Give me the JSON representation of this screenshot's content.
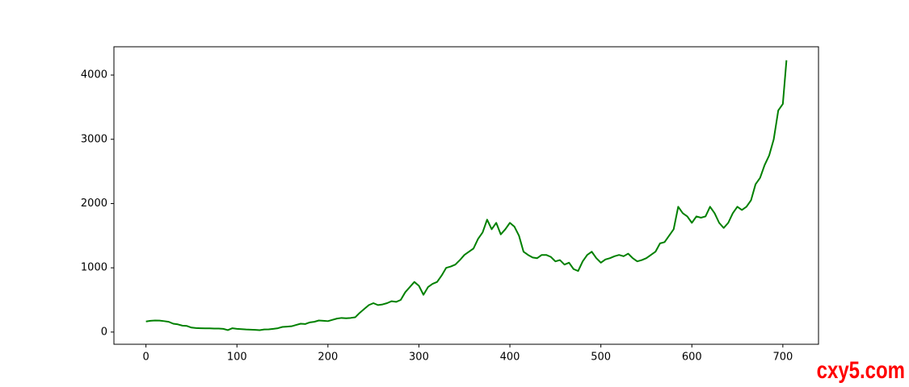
{
  "chart_data": {
    "type": "line",
    "color": "#008000",
    "grid": false,
    "x": [
      0,
      5,
      10,
      15,
      20,
      25,
      30,
      35,
      40,
      45,
      50,
      55,
      60,
      65,
      70,
      75,
      80,
      85,
      90,
      95,
      100,
      105,
      110,
      115,
      120,
      125,
      130,
      135,
      140,
      145,
      150,
      155,
      160,
      165,
      170,
      175,
      180,
      185,
      190,
      195,
      200,
      205,
      210,
      215,
      220,
      225,
      230,
      235,
      240,
      245,
      250,
      255,
      260,
      265,
      270,
      275,
      280,
      285,
      290,
      295,
      300,
      305,
      310,
      315,
      320,
      325,
      330,
      335,
      340,
      345,
      350,
      355,
      360,
      365,
      370,
      375,
      380,
      385,
      390,
      395,
      400,
      405,
      410,
      415,
      420,
      425,
      430,
      435,
      440,
      445,
      450,
      455,
      460,
      465,
      470,
      475,
      480,
      485,
      490,
      495,
      500,
      505,
      510,
      515,
      520,
      525,
      530,
      535,
      540,
      545,
      550,
      555,
      560,
      565,
      570,
      575,
      580,
      585,
      590,
      595,
      600,
      605,
      610,
      615,
      620,
      625,
      630,
      635,
      640,
      645,
      650,
      655,
      660,
      665,
      670,
      675,
      680,
      685,
      690,
      695,
      700,
      704
    ],
    "values": [
      165,
      175,
      180,
      178,
      170,
      160,
      130,
      120,
      100,
      95,
      70,
      62,
      60,
      58,
      57,
      55,
      55,
      50,
      30,
      60,
      50,
      45,
      40,
      38,
      35,
      30,
      40,
      42,
      50,
      60,
      80,
      85,
      90,
      110,
      130,
      125,
      150,
      160,
      180,
      175,
      170,
      190,
      210,
      220,
      215,
      220,
      230,
      300,
      360,
      420,
      450,
      420,
      430,
      450,
      480,
      470,
      500,
      620,
      700,
      780,
      720,
      580,
      700,
      750,
      780,
      880,
      1000,
      1020,
      1050,
      1120,
      1200,
      1250,
      1300,
      1450,
      1550,
      1750,
      1600,
      1700,
      1520,
      1600,
      1700,
      1640,
      1500,
      1250,
      1200,
      1160,
      1150,
      1200,
      1200,
      1170,
      1100,
      1120,
      1050,
      1080,
      980,
      950,
      1100,
      1200,
      1250,
      1150,
      1080,
      1130,
      1150,
      1180,
      1200,
      1180,
      1220,
      1150,
      1100,
      1120,
      1150,
      1200,
      1250,
      1380,
      1400,
      1500,
      1600,
      1950,
      1850,
      1800,
      1700,
      1800,
      1780,
      1800,
      1950,
      1850,
      1700,
      1620,
      1700,
      1850,
      1950,
      1900,
      1950,
      2050,
      2300,
      2400,
      2600,
      2750,
      3000,
      3450,
      3550,
      4230
    ],
    "xlim": [
      -35.2,
      739.2
    ],
    "xticks": [
      0,
      100,
      200,
      300,
      400,
      500,
      600,
      700
    ],
    "ylim": [
      -190,
      4440
    ],
    "yticks": [
      0,
      1000,
      2000,
      3000,
      4000
    ]
  },
  "watermark": "cxy5.com"
}
